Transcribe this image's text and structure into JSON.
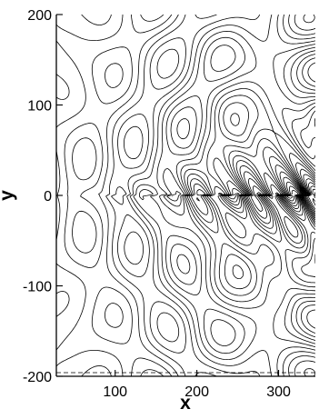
{
  "chart_data": {
    "type": "contour",
    "title": "",
    "xlabel": "x",
    "ylabel": "y",
    "xlim": [
      28,
      345
    ],
    "ylim": [
      -200,
      200
    ],
    "x_ticks": [
      {
        "value": 100,
        "label": "100"
      },
      {
        "value": 200,
        "label": "200"
      },
      {
        "value": 300,
        "label": "300"
      }
    ],
    "y_ticks": [
      {
        "value": 200,
        "label": "200"
      },
      {
        "value": 100,
        "label": "100"
      },
      {
        "value": 0,
        "label": "0"
      },
      {
        "value": -100,
        "label": "-100"
      },
      {
        "value": -200,
        "label": "-200"
      }
    ],
    "grid": false,
    "line_color": "#000000",
    "background": "#ffffff",
    "description": "Black contour lines of a wave field; dense oscillating vortex shear layer along y = 0 growing in amplitude toward the right edge"
  }
}
